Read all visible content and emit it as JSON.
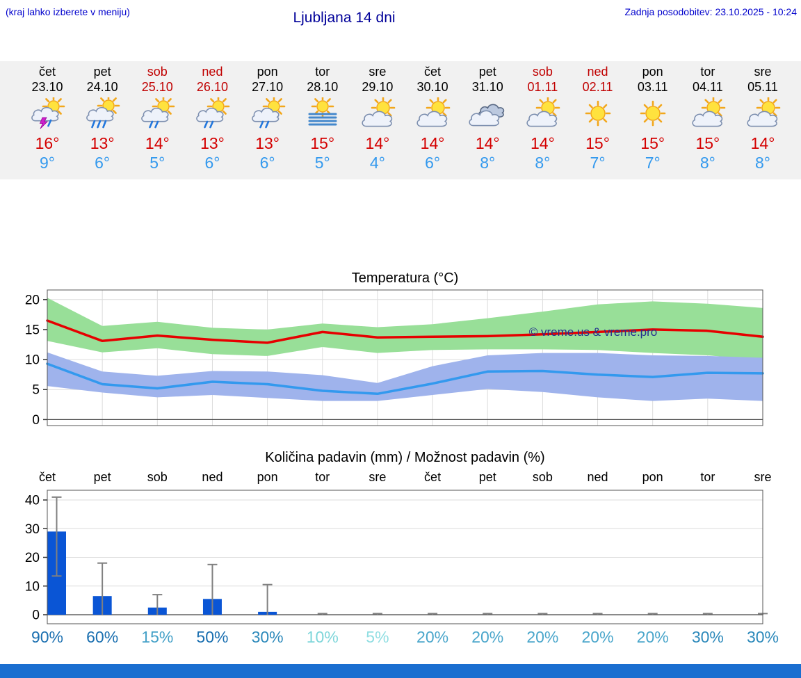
{
  "header": {
    "note_left": "(kraj lahko izberete v meniju)",
    "title": "Ljubljana 14 dni",
    "updated": "Zadnja posodobitev: 23.10.2025 - 10:24"
  },
  "colors": {
    "link_blue": "#0000cc",
    "title_blue": "#000099",
    "strip_bg": "#f1f1f1",
    "temp_max": "#d40000",
    "temp_min": "#3399ee",
    "weekend_red": "#c00000",
    "footer_bar": "#1a6ed0"
  },
  "forecast": {
    "days": [
      {
        "name": "čet",
        "date": "23.10",
        "weekend": false,
        "icon": "thunder-shower",
        "tmax": "16°",
        "tmin": "9°"
      },
      {
        "name": "pet",
        "date": "24.10",
        "weekend": false,
        "icon": "heavy-rain",
        "tmax": "13°",
        "tmin": "6°"
      },
      {
        "name": "sob",
        "date": "25.10",
        "weekend": true,
        "icon": "rain-shower",
        "tmax": "14°",
        "tmin": "5°"
      },
      {
        "name": "ned",
        "date": "26.10",
        "weekend": true,
        "icon": "rain-shower",
        "tmax": "13°",
        "tmin": "6°"
      },
      {
        "name": "pon",
        "date": "27.10",
        "weekend": false,
        "icon": "rain-shower",
        "tmax": "13°",
        "tmin": "6°"
      },
      {
        "name": "tor",
        "date": "28.10",
        "weekend": false,
        "icon": "fog-sun",
        "tmax": "15°",
        "tmin": "5°"
      },
      {
        "name": "sre",
        "date": "29.10",
        "weekend": false,
        "icon": "partly-cloudy",
        "tmax": "14°",
        "tmin": "4°"
      },
      {
        "name": "čet",
        "date": "30.10",
        "weekend": false,
        "icon": "partly-cloudy",
        "tmax": "14°",
        "tmin": "6°"
      },
      {
        "name": "pet",
        "date": "31.10",
        "weekend": false,
        "icon": "cloudy",
        "tmax": "14°",
        "tmin": "8°"
      },
      {
        "name": "sob",
        "date": "01.11",
        "weekend": true,
        "icon": "partly-cloudy",
        "tmax": "14°",
        "tmin": "8°"
      },
      {
        "name": "ned",
        "date": "02.11",
        "weekend": true,
        "icon": "sunny",
        "tmax": "15°",
        "tmin": "7°"
      },
      {
        "name": "pon",
        "date": "03.11",
        "weekend": false,
        "icon": "sunny",
        "tmax": "15°",
        "tmin": "7°"
      },
      {
        "name": "tor",
        "date": "04.11",
        "weekend": false,
        "icon": "partly-cloudy",
        "tmax": "15°",
        "tmin": "8°"
      },
      {
        "name": "sre",
        "date": "05.11",
        "weekend": false,
        "icon": "partly-cloudy",
        "tmax": "14°",
        "tmin": "8°"
      }
    ]
  },
  "chart_data": [
    {
      "type": "line",
      "title": "Temperatura (°C)",
      "x_labels": [
        "čet",
        "pet",
        "sob",
        "ned",
        "pon",
        "tor",
        "sre",
        "čet",
        "pet",
        "sob",
        "ned",
        "pon",
        "tor",
        "sre"
      ],
      "ylim": [
        -1,
        21.6
      ],
      "yticks": [
        0,
        5,
        10,
        15,
        20
      ],
      "grid": true,
      "watermark": "© vreme.us & vreme.pro",
      "series": [
        {
          "name": "max temperature",
          "color": "#e60000",
          "values": [
            16.5,
            13.1,
            14.0,
            13.3,
            12.8,
            14.6,
            13.7,
            13.8,
            13.9,
            14.2,
            14.6,
            15.0,
            14.8,
            13.8
          ]
        },
        {
          "name": "min temperature",
          "color": "#3399ee",
          "values": [
            9.3,
            5.9,
            5.2,
            6.3,
            5.9,
            4.8,
            4.3,
            6.0,
            8.0,
            8.1,
            7.5,
            7.1,
            7.8,
            7.7
          ]
        }
      ],
      "bands": [
        {
          "name": "max temperature range",
          "color": "#98df98",
          "upper": [
            20.3,
            15.6,
            16.3,
            15.3,
            15.0,
            16.0,
            15.4,
            15.9,
            16.9,
            18.0,
            19.2,
            19.7,
            19.3,
            18.6
          ],
          "lower": [
            13.1,
            11.2,
            11.9,
            10.9,
            10.6,
            12.1,
            11.1,
            11.6,
            11.7,
            11.7,
            11.6,
            11.1,
            10.7,
            9.9
          ]
        },
        {
          "name": "min temperature range",
          "color": "#9fb3ec",
          "upper": [
            11.2,
            8.0,
            7.3,
            8.1,
            8.0,
            7.4,
            6.1,
            8.9,
            10.7,
            11.1,
            11.1,
            10.7,
            10.6,
            10.3
          ],
          "lower": [
            5.6,
            4.5,
            3.7,
            4.1,
            3.6,
            3.1,
            3.1,
            4.1,
            5.1,
            4.6,
            3.7,
            3.1,
            3.5,
            3.1
          ]
        }
      ]
    },
    {
      "type": "bar",
      "title": "Količina padavin (mm) / Možnost padavin (%)",
      "x_labels": [
        "čet",
        "pet",
        "sob",
        "ned",
        "pon",
        "tor",
        "sre",
        "čet",
        "pet",
        "sob",
        "ned",
        "pon",
        "tor",
        "sre"
      ],
      "ylim": [
        -3,
        43.5
      ],
      "yticks": [
        0,
        10,
        20,
        30,
        40
      ],
      "bar_color": "#0a55d5",
      "whisker_color": "#808080",
      "values": [
        29,
        6.5,
        2.5,
        5.5,
        1,
        0,
        0,
        0,
        0,
        0,
        0,
        0,
        0,
        0
      ],
      "whisker_low": [
        13.5,
        0,
        0,
        0,
        0,
        0,
        0,
        0,
        0,
        0,
        0,
        0,
        0,
        0
      ],
      "whisker_high": [
        41,
        18,
        7,
        17.5,
        10.5,
        0.4,
        0.4,
        0.4,
        0.4,
        0.4,
        0.4,
        0.4,
        0.4,
        0.4
      ],
      "probabilities": [
        {
          "label": "90%",
          "color": "#1a6fb0"
        },
        {
          "label": "60%",
          "color": "#1a6fb0"
        },
        {
          "label": "15%",
          "color": "#45a1c8"
        },
        {
          "label": "50%",
          "color": "#1a6fb0"
        },
        {
          "label": "30%",
          "color": "#2e8abb"
        },
        {
          "label": "10%",
          "color": "#7fd6da"
        },
        {
          "label": "5%",
          "color": "#90dee2"
        },
        {
          "label": "20%",
          "color": "#4aa6cb"
        },
        {
          "label": "20%",
          "color": "#4aa6cb"
        },
        {
          "label": "20%",
          "color": "#4aa6cb"
        },
        {
          "label": "20%",
          "color": "#4aa6cb"
        },
        {
          "label": "20%",
          "color": "#4aa6cb"
        },
        {
          "label": "30%",
          "color": "#2e8abb"
        },
        {
          "label": "30%",
          "color": "#2e8abb"
        }
      ]
    }
  ]
}
